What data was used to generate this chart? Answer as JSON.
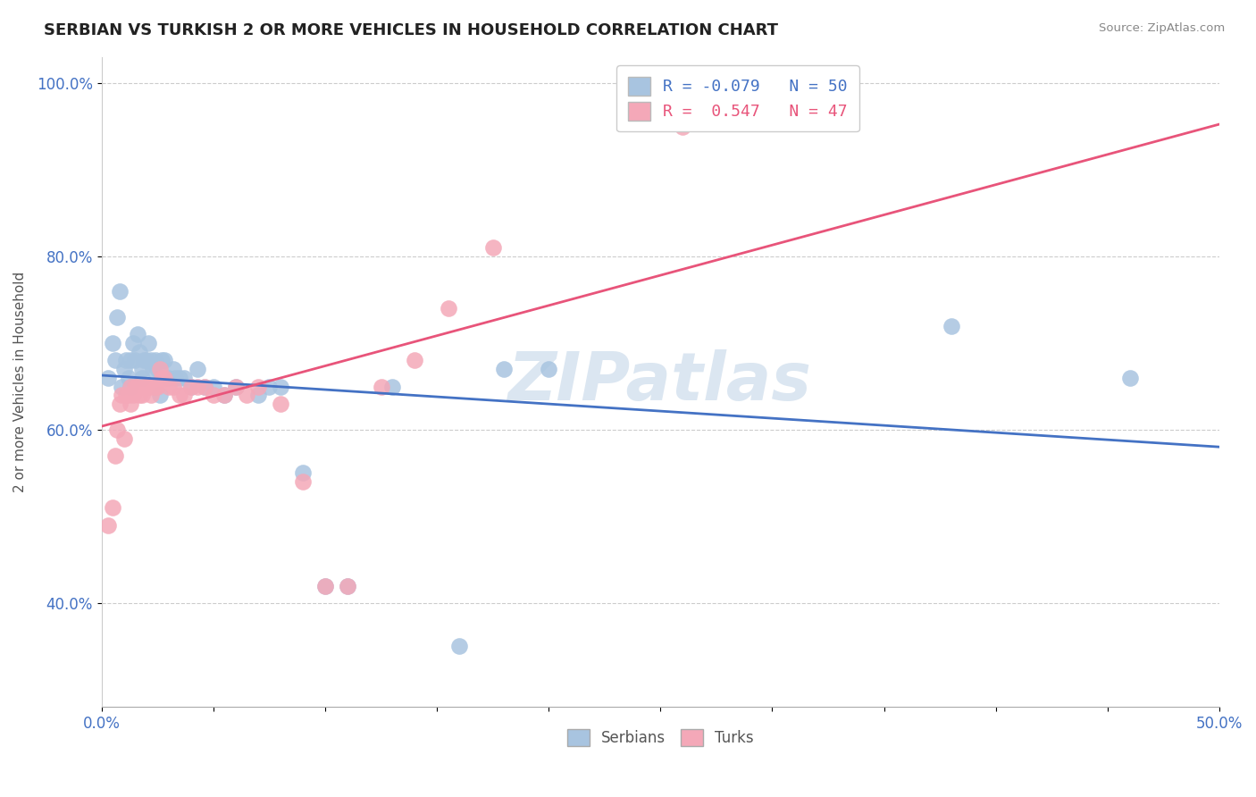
{
  "title": "SERBIAN VS TURKISH 2 OR MORE VEHICLES IN HOUSEHOLD CORRELATION CHART",
  "source": "Source: ZipAtlas.com",
  "ylabel": "2 or more Vehicles in Household",
  "xlabel": "",
  "xlim": [
    0.0,
    0.5
  ],
  "ylim": [
    0.28,
    1.03
  ],
  "xticks": [
    0.0,
    0.05,
    0.1,
    0.15,
    0.2,
    0.25,
    0.3,
    0.35,
    0.4,
    0.45,
    0.5
  ],
  "xticklabels": [
    "0.0%",
    "",
    "",
    "",
    "",
    "",
    "",
    "",
    "",
    "",
    "50.0%"
  ],
  "ytick_positions": [
    0.4,
    0.6,
    0.8,
    1.0
  ],
  "yticklabels": [
    "40.0%",
    "60.0%",
    "80.0%",
    "100.0%"
  ],
  "serbian_color": "#a8c4e0",
  "turkish_color": "#f4a8b8",
  "serbian_line_color": "#4472c4",
  "turkish_line_color": "#e8547a",
  "legend_serbian_R": "-0.079",
  "legend_serbian_N": "50",
  "legend_turkish_R": "0.547",
  "legend_turkish_N": "47",
  "watermark": "ZIPatlas",
  "serbian_x": [
    0.003,
    0.005,
    0.006,
    0.007,
    0.008,
    0.009,
    0.01,
    0.011,
    0.012,
    0.013,
    0.013,
    0.014,
    0.015,
    0.016,
    0.017,
    0.018,
    0.018,
    0.019,
    0.02,
    0.021,
    0.022,
    0.023,
    0.024,
    0.025,
    0.026,
    0.027,
    0.028,
    0.03,
    0.032,
    0.033,
    0.035,
    0.037,
    0.04,
    0.043,
    0.046,
    0.05,
    0.055,
    0.06,
    0.07,
    0.075,
    0.08,
    0.09,
    0.1,
    0.11,
    0.13,
    0.16,
    0.18,
    0.2,
    0.38,
    0.46
  ],
  "serbian_y": [
    0.66,
    0.7,
    0.68,
    0.73,
    0.76,
    0.65,
    0.67,
    0.68,
    0.66,
    0.68,
    0.65,
    0.7,
    0.68,
    0.71,
    0.69,
    0.67,
    0.66,
    0.68,
    0.68,
    0.7,
    0.68,
    0.67,
    0.68,
    0.67,
    0.64,
    0.68,
    0.68,
    0.66,
    0.67,
    0.66,
    0.66,
    0.66,
    0.65,
    0.67,
    0.65,
    0.65,
    0.64,
    0.65,
    0.64,
    0.65,
    0.65,
    0.55,
    0.42,
    0.42,
    0.65,
    0.35,
    0.67,
    0.67,
    0.72,
    0.66
  ],
  "turkish_x": [
    0.003,
    0.005,
    0.006,
    0.007,
    0.008,
    0.009,
    0.01,
    0.011,
    0.012,
    0.013,
    0.013,
    0.014,
    0.015,
    0.016,
    0.017,
    0.018,
    0.019,
    0.02,
    0.021,
    0.022,
    0.023,
    0.024,
    0.025,
    0.026,
    0.027,
    0.028,
    0.03,
    0.032,
    0.035,
    0.037,
    0.04,
    0.043,
    0.046,
    0.05,
    0.055,
    0.06,
    0.065,
    0.07,
    0.08,
    0.09,
    0.1,
    0.11,
    0.125,
    0.14,
    0.155,
    0.175,
    0.26
  ],
  "turkish_y": [
    0.49,
    0.51,
    0.57,
    0.6,
    0.63,
    0.64,
    0.59,
    0.64,
    0.64,
    0.63,
    0.65,
    0.64,
    0.65,
    0.65,
    0.64,
    0.64,
    0.65,
    0.65,
    0.65,
    0.64,
    0.65,
    0.65,
    0.65,
    0.67,
    0.66,
    0.66,
    0.65,
    0.65,
    0.64,
    0.64,
    0.65,
    0.65,
    0.65,
    0.64,
    0.64,
    0.65,
    0.64,
    0.65,
    0.63,
    0.54,
    0.42,
    0.42,
    0.65,
    0.68,
    0.74,
    0.81,
    0.95
  ]
}
